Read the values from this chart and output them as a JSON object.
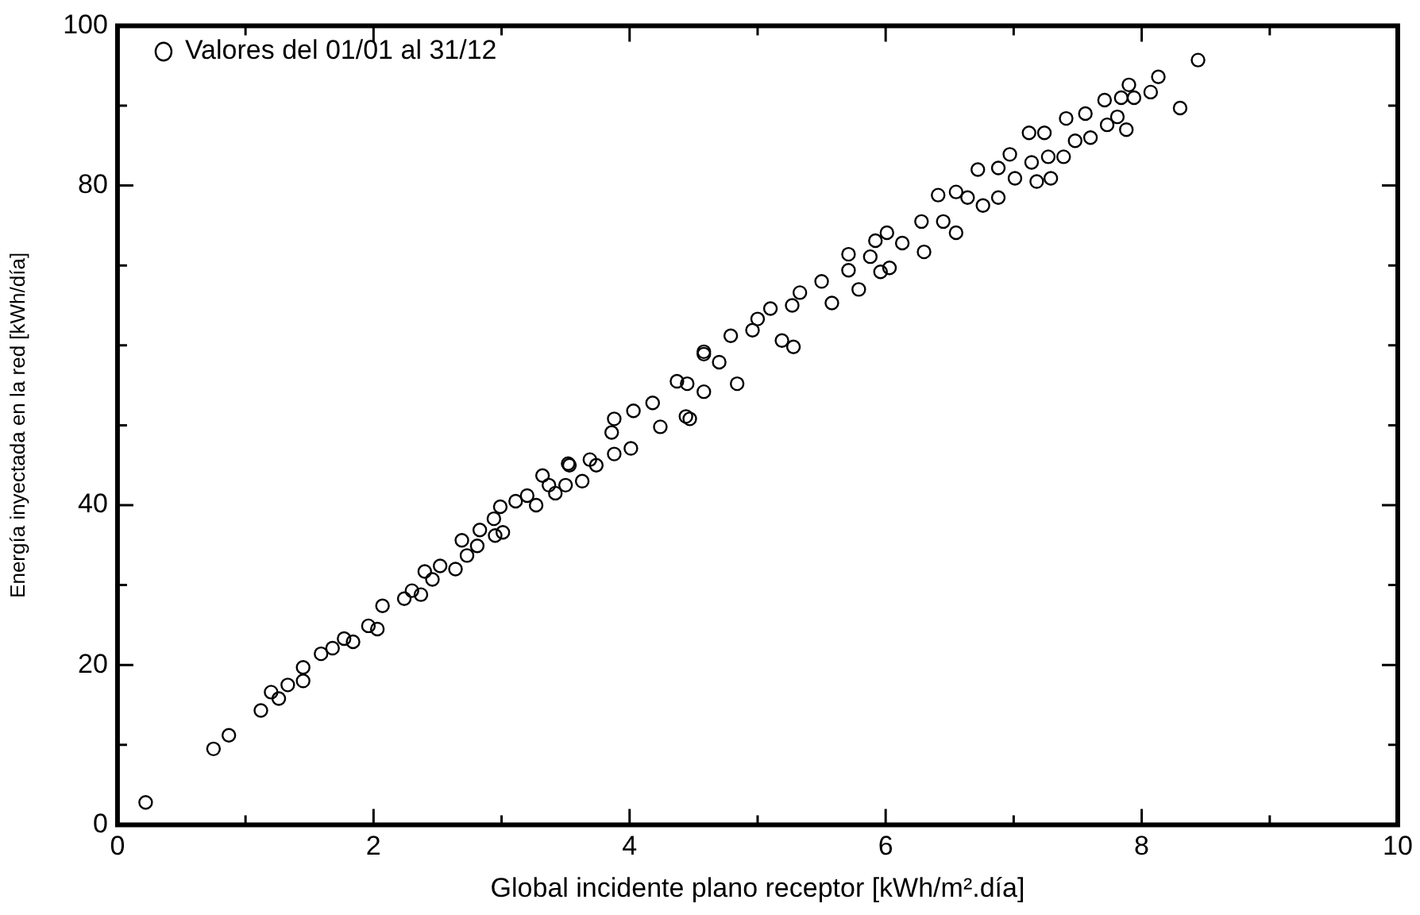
{
  "chart_data": {
    "type": "scatter",
    "xlabel": "Global incidente plano receptor [kWh/m².día]",
    "ylabel": "Energía inyectada en la red [kWh/día]",
    "xlim": [
      0,
      10
    ],
    "ylim": [
      0,
      100
    ],
    "xticks": [
      0,
      {
        "value": 1,
        "label": null
      },
      2,
      {
        "value": 3,
        "label": null
      },
      4,
      {
        "value": 5,
        "label": null
      },
      6,
      {
        "value": 7,
        "label": null
      },
      8,
      {
        "value": 9,
        "label": null
      },
      10
    ],
    "yticks": [
      0,
      {
        "value": 10,
        "label": null
      },
      20,
      {
        "value": 30,
        "label": null
      },
      40,
      {
        "value": 50,
        "label": null
      },
      {
        "value": 60,
        "label": null
      },
      {
        "value": 70,
        "label": null
      },
      80,
      {
        "value": 90,
        "label": null
      },
      100
    ],
    "legend": "top left",
    "marker": "circle",
    "grid": false,
    "series": [
      {
        "name": "Valores del 01/01 al 31/12",
        "color": "#000000",
        "x": [
          0.22,
          0.75,
          0.87,
          1.12,
          1.2,
          1.26,
          1.33,
          1.45,
          1.45,
          1.59,
          1.68,
          1.77,
          1.84,
          1.96,
          2.03,
          2.07,
          2.24,
          2.3,
          2.37,
          2.4,
          2.46,
          2.52,
          2.64,
          2.69,
          2.73,
          2.81,
          2.83,
          2.94,
          2.95,
          2.99,
          3.01,
          3.11,
          3.2,
          3.27,
          3.32,
          3.37,
          3.42,
          3.5,
          3.52,
          3.53,
          3.63,
          3.69,
          3.74,
          3.86,
          3.88,
          3.88,
          4.01,
          4.03,
          4.18,
          4.24,
          4.37,
          4.44,
          4.45,
          4.47,
          4.58,
          4.58,
          4.58,
          4.7,
          4.79,
          4.84,
          4.96,
          5.0,
          5.1,
          5.19,
          5.27,
          5.28,
          5.33,
          5.5,
          5.58,
          5.71,
          5.71,
          5.79,
          5.88,
          5.92,
          5.96,
          6.01,
          6.03,
          6.13,
          6.28,
          6.3,
          6.41,
          6.45,
          6.55,
          6.55,
          6.64,
          6.72,
          6.76,
          6.88,
          6.88,
          6.97,
          7.01,
          7.12,
          7.14,
          7.18,
          7.24,
          7.27,
          7.29,
          7.39,
          7.41,
          7.48,
          7.56,
          7.6,
          7.71,
          7.73,
          7.81,
          7.84,
          7.88,
          7.9,
          7.94,
          8.07,
          8.13,
          8.3,
          8.44
        ],
        "values": [
          2.8,
          9.5,
          11.2,
          14.3,
          16.6,
          15.8,
          17.5,
          19.7,
          18.0,
          21.4,
          22.1,
          23.3,
          22.9,
          24.9,
          24.5,
          27.4,
          28.3,
          29.3,
          28.8,
          31.7,
          30.7,
          32.4,
          32.0,
          35.6,
          33.7,
          34.9,
          36.9,
          38.3,
          36.2,
          39.8,
          36.6,
          40.5,
          41.2,
          40.0,
          43.7,
          42.5,
          41.5,
          42.5,
          45.2,
          45.0,
          43.0,
          45.7,
          45.0,
          49.1,
          46.4,
          50.8,
          47.1,
          51.8,
          52.8,
          49.8,
          55.5,
          51.1,
          55.2,
          50.8,
          58.9,
          59.2,
          54.2,
          57.9,
          61.2,
          55.2,
          61.9,
          63.3,
          64.6,
          60.6,
          65.0,
          59.8,
          66.6,
          68.0,
          65.3,
          71.4,
          69.4,
          67.0,
          71.1,
          73.1,
          69.2,
          74.1,
          69.7,
          72.8,
          75.5,
          71.7,
          78.8,
          75.5,
          74.1,
          79.2,
          78.5,
          82.0,
          77.5,
          82.2,
          78.5,
          83.9,
          80.9,
          86.6,
          82.9,
          80.5,
          86.6,
          83.6,
          80.9,
          83.6,
          88.4,
          85.6,
          89.0,
          86.0,
          90.7,
          87.6,
          88.6,
          91.0,
          87.0,
          92.6,
          91.0,
          91.7,
          93.6,
          89.7,
          95.7
        ]
      }
    ]
  }
}
